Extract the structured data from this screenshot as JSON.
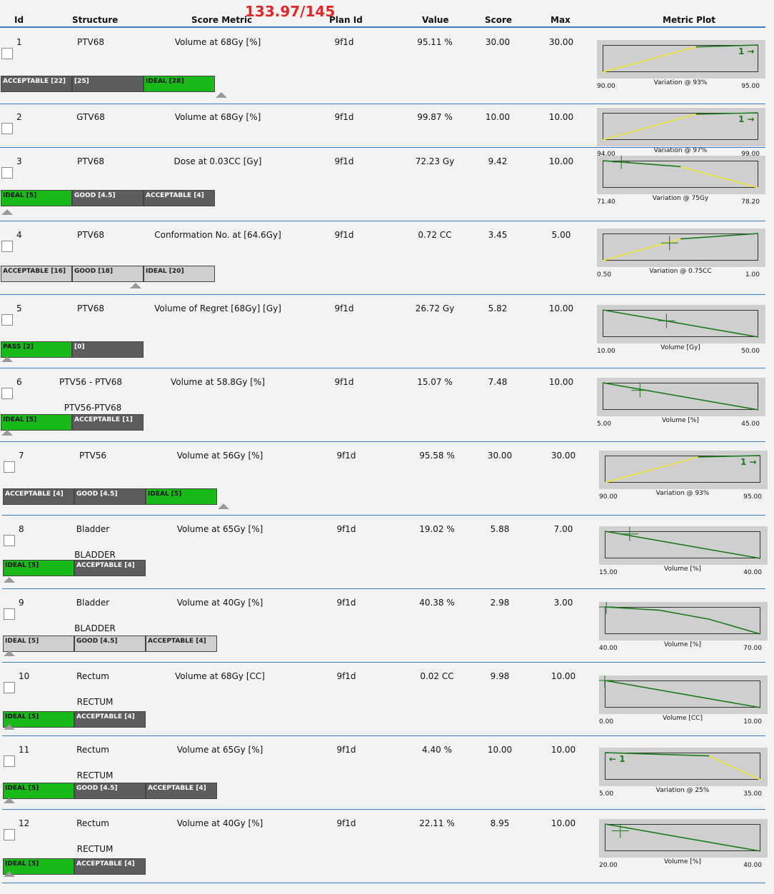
{
  "header": {
    "total_score": "133.97/145",
    "columns": {
      "id": "Id",
      "structure": "Structure",
      "metric": "Score Metric",
      "plan": "Plan Id",
      "value": "Value",
      "score": "Score",
      "max": "Max",
      "plot": "Metric Plot"
    }
  },
  "colors": {
    "ideal": "#18b918",
    "dark": "#5d5d5d",
    "light": "#cfcfcf",
    "line": "#1a7a1a",
    "variation": "#f0e832",
    "accent": "#e32626"
  },
  "rows": [
    {
      "id": "1",
      "structure": "PTV68",
      "metric": "Volume at 68Gy [%]",
      "plan": "9f1d",
      "value": "95.11 %",
      "score": "30.00",
      "max": "30.00",
      "sub": "",
      "bar": [
        {
          "label": "ACCEPTABLE [22]",
          "kind": "d"
        },
        {
          "label": "[25]",
          "kind": "d"
        },
        {
          "label": "IDEAL [28]",
          "kind": "g"
        }
      ],
      "plot": {
        "min": "90.00",
        "max": "95.00",
        "label": "Variation @ 93%",
        "arrow": "1 →"
      }
    },
    {
      "id": "2",
      "structure": "GTV68",
      "metric": "Volume at 68Gy [%]",
      "plan": "9f1d",
      "value": "99.87 %",
      "score": "10.00",
      "max": "10.00",
      "sub": "",
      "bar": [],
      "plot": {
        "min": "94.00",
        "max": "99.00",
        "label": "Variation @ 97%",
        "arrow": "1 →"
      }
    },
    {
      "id": "3",
      "structure": "PTV68",
      "metric": "Dose at 0.03CC [Gy]",
      "plan": "9f1d",
      "value": "72.23 Gy",
      "score": "9.42",
      "max": "10.00",
      "sub": "",
      "bar": [
        {
          "label": "IDEAL [5]",
          "kind": "g"
        },
        {
          "label": "GOOD [4.5]",
          "kind": "d"
        },
        {
          "label": "ACCEPTABLE [4]",
          "kind": "d"
        }
      ],
      "plot": {
        "min": "71.40",
        "max": "78.20",
        "label": "Variation @ 75Gy",
        "arrow": ""
      }
    },
    {
      "id": "4",
      "structure": "PTV68",
      "metric": "Conformation No. at [64.6Gy]",
      "plan": "9f1d",
      "value": "0.72 CC",
      "score": "3.45",
      "max": "5.00",
      "sub": "",
      "bar": [
        {
          "label": "ACCEPTABLE [16]",
          "kind": "l"
        },
        {
          "label": "GOOD [18]",
          "kind": "l"
        },
        {
          "label": "IDEAL [20]",
          "kind": "l"
        }
      ],
      "plot": {
        "min": "0.50",
        "max": "1.00",
        "label": "Variation @ 0.75CC",
        "arrow": ""
      }
    },
    {
      "id": "5",
      "structure": "PTV68",
      "metric": "Volume of Regret [68Gy] [Gy]",
      "plan": "9f1d",
      "value": "26.72 Gy",
      "score": "5.82",
      "max": "10.00",
      "sub": "",
      "bar": [
        {
          "label": "PASS [2]",
          "kind": "g"
        },
        {
          "label": "[0]",
          "kind": "d"
        }
      ],
      "plot": {
        "min": "10.00",
        "max": "50.00",
        "label": "Volume [Gy]",
        "arrow": ""
      }
    },
    {
      "id": "6",
      "structure": "PTV56 - PTV68",
      "metric": "Volume at 58.8Gy [%]",
      "plan": "9f1d",
      "value": "15.07 %",
      "score": "7.48",
      "max": "10.00",
      "sub": "PTV56-PTV68",
      "bar": [
        {
          "label": "IDEAL [5]",
          "kind": "g"
        },
        {
          "label": "ACCEPTABLE [1]",
          "kind": "d"
        }
      ],
      "plot": {
        "min": "5.00",
        "max": "45.00",
        "label": "Volume [%]",
        "arrow": ""
      }
    },
    {
      "id": "7",
      "structure": "PTV56",
      "metric": "Volume at 56Gy [%]",
      "plan": "9f1d",
      "value": "95.58 %",
      "score": "30.00",
      "max": "30.00",
      "sub": "",
      "bar": [
        {
          "label": "ACCEPTABLE [4]",
          "kind": "d"
        },
        {
          "label": "GOOD [4.5]",
          "kind": "d"
        },
        {
          "label": "IDEAL [5]",
          "kind": "g"
        }
      ],
      "plot": {
        "min": "90.00",
        "max": "95.00",
        "label": "Variation @ 93%",
        "arrow": "1 →"
      }
    },
    {
      "id": "8",
      "structure": "Bladder",
      "metric": "Volume at 65Gy [%]",
      "plan": "9f1d",
      "value": "19.02 %",
      "score": "5.88",
      "max": "7.00",
      "sub": "BLADDER",
      "bar": [
        {
          "label": "IDEAL [5]",
          "kind": "g"
        },
        {
          "label": "ACCEPTABLE [4]",
          "kind": "d"
        }
      ],
      "plot": {
        "min": "15.00",
        "max": "40.00",
        "label": "Volume [%]",
        "arrow": ""
      }
    },
    {
      "id": "9",
      "structure": "Bladder",
      "metric": "Volume at 40Gy [%]",
      "plan": "9f1d",
      "value": "40.38 %",
      "score": "2.98",
      "max": "3.00",
      "sub": "BLADDER",
      "bar": [
        {
          "label": "IDEAL [5]",
          "kind": "l"
        },
        {
          "label": "GOOD [4.5]",
          "kind": "l"
        },
        {
          "label": "ACCEPTABLE [4]",
          "kind": "l"
        }
      ],
      "plot": {
        "min": "40.00",
        "max": "70.00",
        "label": "Volume [%]",
        "arrow": ""
      }
    },
    {
      "id": "10",
      "structure": "Rectum",
      "metric": "Volume at 68Gy [CC]",
      "plan": "9f1d",
      "value": "0.02 CC",
      "score": "9.98",
      "max": "10.00",
      "sub": "RECTUM",
      "bar": [
        {
          "label": "IDEAL [5]",
          "kind": "g"
        },
        {
          "label": "ACCEPTABLE [4]",
          "kind": "d"
        }
      ],
      "plot": {
        "min": "0.00",
        "max": "10.00",
        "label": "Volume [CC]",
        "arrow": ""
      }
    },
    {
      "id": "11",
      "structure": "Rectum",
      "metric": "Volume at 65Gy [%]",
      "plan": "9f1d",
      "value": "4.40 %",
      "score": "10.00",
      "max": "10.00",
      "sub": "RECTUM",
      "bar": [
        {
          "label": "IDEAL [5]",
          "kind": "g"
        },
        {
          "label": "GOOD [4.5]",
          "kind": "d"
        },
        {
          "label": "ACCEPTABLE [4]",
          "kind": "d"
        }
      ],
      "plot": {
        "min": "5.00",
        "max": "35.00",
        "label": "Variation @ 25%",
        "arrow": "← 1"
      }
    },
    {
      "id": "12",
      "structure": "Rectum",
      "metric": "Volume at 40Gy [%]",
      "plan": "9f1d",
      "value": "22.11 %",
      "score": "8.95",
      "max": "10.00",
      "sub": "RECTUM",
      "bar": [
        {
          "label": "IDEAL [5]",
          "kind": "g"
        },
        {
          "label": "ACCEPTABLE [4]",
          "kind": "d"
        }
      ],
      "plot": {
        "min": "20.00",
        "max": "40.00",
        "label": "Volume [%]",
        "arrow": ""
      }
    }
  ]
}
